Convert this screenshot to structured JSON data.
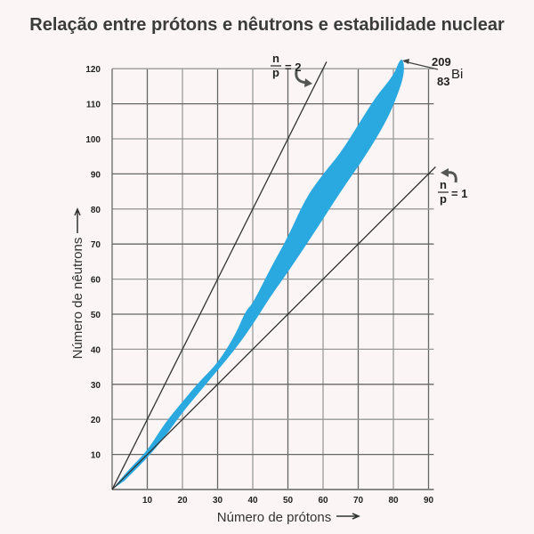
{
  "chart_data": {
    "type": "area",
    "title": "Relação entre prótons e nêutrons e estabilidade nuclear",
    "xlabel": "Número de prótons",
    "ylabel": "Número de nêutrons",
    "xlim": [
      0,
      92
    ],
    "ylim": [
      0,
      122
    ],
    "xticks": [
      10,
      20,
      30,
      40,
      50,
      60,
      70,
      80,
      90
    ],
    "yticks": [
      10,
      20,
      30,
      40,
      50,
      60,
      70,
      80,
      90,
      100,
      110,
      120
    ],
    "grid": true,
    "band_color": "#29a9e0",
    "stability_band": {
      "upper": [
        [
          0,
          0
        ],
        [
          5,
          6
        ],
        [
          10,
          11
        ],
        [
          15,
          19
        ],
        [
          20,
          25
        ],
        [
          25,
          31
        ],
        [
          30,
          36
        ],
        [
          35,
          44
        ],
        [
          38,
          51
        ],
        [
          40,
          53
        ],
        [
          45,
          63
        ],
        [
          50,
          72
        ],
        [
          55,
          83
        ],
        [
          60,
          90
        ],
        [
          65,
          96
        ],
        [
          70,
          104
        ],
        [
          75,
          112
        ],
        [
          80,
          118
        ],
        [
          82,
          123
        ]
      ],
      "lower": [
        [
          83,
          122
        ],
        [
          83,
          118
        ],
        [
          81,
          112
        ],
        [
          78,
          105
        ],
        [
          72,
          95
        ],
        [
          65,
          85
        ],
        [
          58,
          74
        ],
        [
          50,
          62
        ],
        [
          45,
          55
        ],
        [
          40,
          47
        ],
        [
          35,
          40
        ],
        [
          30,
          34
        ],
        [
          25,
          28
        ],
        [
          20,
          22
        ],
        [
          15,
          15
        ],
        [
          10,
          9
        ],
        [
          5,
          4
        ],
        [
          2,
          1
        ]
      ]
    },
    "lines": [
      {
        "name": "n/p = 2",
        "ratio": 2,
        "x_end": 61
      },
      {
        "name": "n/p = 1",
        "ratio": 1,
        "x_end": 92
      }
    ],
    "annotations": {
      "ratio2": {
        "num": "n",
        "den": "p",
        "value": "= 2"
      },
      "ratio1": {
        "num": "n",
        "den": "p",
        "value": "= 1"
      },
      "bismuth": {
        "mass": "209",
        "atomic": "83",
        "symbol": "Bi"
      }
    }
  }
}
